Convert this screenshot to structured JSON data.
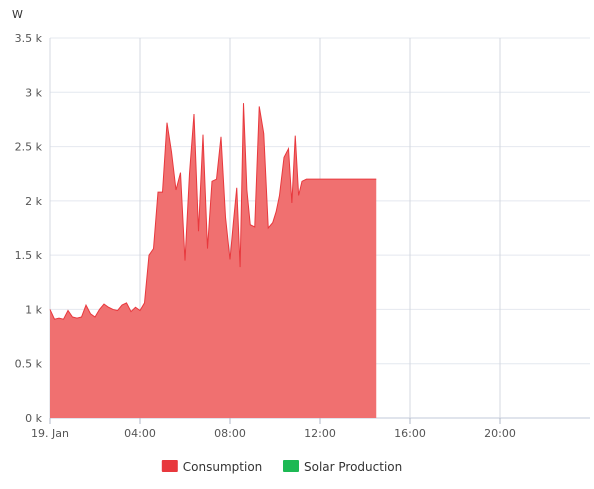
{
  "chart_data": {
    "type": "area",
    "title": "",
    "ylabel": "W",
    "xlabel": "",
    "ylim": [
      0,
      3500
    ],
    "xlim_hours": [
      0,
      24
    ],
    "grid": true,
    "legend_position": "bottom-center",
    "y_ticks": [
      {
        "value": 0,
        "label": "0 k"
      },
      {
        "value": 500,
        "label": "0.5 k"
      },
      {
        "value": 1000,
        "label": "1 k"
      },
      {
        "value": 1500,
        "label": "1.5 k"
      },
      {
        "value": 2000,
        "label": "2 k"
      },
      {
        "value": 2500,
        "label": "2.5 k"
      },
      {
        "value": 3000,
        "label": "3 k"
      },
      {
        "value": 3500,
        "label": "3.5 k"
      }
    ],
    "x_ticks": [
      {
        "hour": 0,
        "label": "19. Jan"
      },
      {
        "hour": 4,
        "label": "04:00"
      },
      {
        "hour": 8,
        "label": "08:00"
      },
      {
        "hour": 12,
        "label": "12:00"
      },
      {
        "hour": 16,
        "label": "16:00"
      },
      {
        "hour": 20,
        "label": "20:00"
      }
    ],
    "series": [
      {
        "name": "Consumption",
        "color": "#e8383d",
        "fill_color": "#f07070",
        "x_hours": [
          0,
          0.2,
          0.4,
          0.6,
          0.8,
          1.0,
          1.2,
          1.4,
          1.6,
          1.8,
          2.0,
          2.2,
          2.4,
          2.6,
          2.8,
          3.0,
          3.2,
          3.4,
          3.6,
          3.8,
          4.0,
          4.2,
          4.4,
          4.6,
          4.8,
          5.0,
          5.2,
          5.4,
          5.6,
          5.8,
          6.0,
          6.2,
          6.4,
          6.6,
          6.8,
          7.0,
          7.2,
          7.4,
          7.6,
          7.8,
          8.0,
          8.15,
          8.3,
          8.45,
          8.6,
          8.75,
          8.9,
          9.1,
          9.3,
          9.5,
          9.7,
          9.9,
          10.05,
          10.2,
          10.4,
          10.6,
          10.75,
          10.9,
          11.05,
          11.2,
          11.4,
          11.6,
          11.75,
          11.9,
          12.0,
          12.2,
          12.4,
          12.6,
          12.8,
          13.0,
          13.2,
          13.4,
          13.5,
          13.6,
          13.8,
          13.95,
          14.1,
          14.25,
          14.4,
          14.5
        ],
        "values": [
          1000,
          910,
          920,
          910,
          990,
          930,
          920,
          930,
          1040,
          960,
          930,
          1000,
          1050,
          1020,
          1000,
          990,
          1040,
          1060,
          980,
          1020,
          990,
          1060,
          1500,
          1560,
          2080,
          2080,
          2720,
          2450,
          2100,
          2260,
          1450,
          2250,
          2800,
          1720,
          2610,
          1560,
          2180,
          2200,
          2590,
          1850,
          1460,
          1800,
          2120,
          1390,
          2900,
          2100,
          1780,
          1760,
          2870,
          2620,
          1750,
          1800,
          1900,
          2050,
          2400,
          2480,
          1980,
          2600,
          2050,
          2180,
          2200,
          2200,
          2200,
          2200,
          2200,
          2200,
          2200,
          2200,
          2200,
          2200,
          2200,
          2200,
          2200,
          2200,
          2200,
          2200,
          2200,
          2200,
          2200,
          2200
        ]
      },
      {
        "name": "Solar Production",
        "color": "#1db954",
        "x_hours": [],
        "values": []
      }
    ]
  }
}
